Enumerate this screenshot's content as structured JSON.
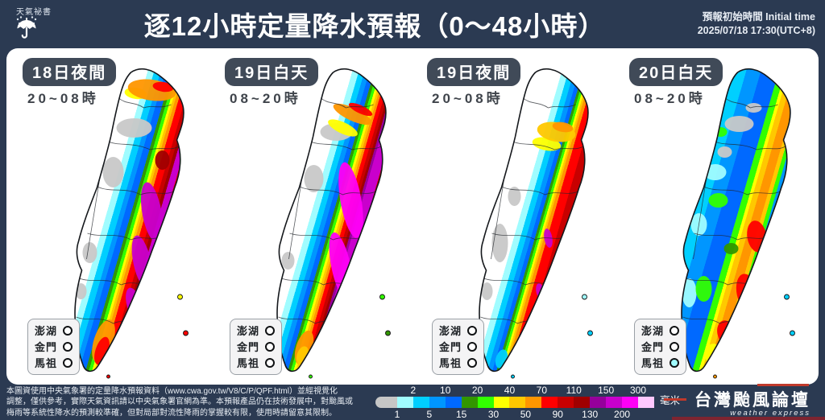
{
  "header": {
    "logo_text": "天氣祕書",
    "title": "逐12小時定量降水預報（0～48小時）",
    "init_time_label": "預報初始時間 Initial time",
    "init_time_value": "2025/07/18  17:30(UTC+8)"
  },
  "island_labels": [
    "澎湖",
    "金門",
    "馬祖"
  ],
  "panels": [
    {
      "badge": "18日夜間",
      "time_range": "20~08時",
      "art": "p1",
      "island_fills": [
        "#ffffff",
        "#ffffff",
        "#ffffff"
      ]
    },
    {
      "badge": "19日白天",
      "time_range": "08~20時",
      "art": "p2",
      "island_fills": [
        "#ffffff",
        "#ffffff",
        "#ffffff"
      ]
    },
    {
      "badge": "19日夜間",
      "time_range": "20~08時",
      "art": "p3",
      "island_fills": [
        "#ffffff",
        "#ffffff",
        "#ffffff"
      ]
    },
    {
      "badge": "20日白天",
      "time_range": "08~20時",
      "art": "p4",
      "island_fills": [
        "#ffffff",
        "#ffffff",
        "#a0fcff"
      ]
    }
  ],
  "footer": {
    "disclaimer_lines": [
      "本圖資使用中央氣象署的定量降水預報資料（www.cwa.gov.tw/V8/C/P/QPF.html）並經視覺化",
      "調整，僅供參考，實際天氣資訊請以中央氣象署官網為準。本預報產品仍在技術發展中，對颱風或",
      "梅雨等系統性降水的預測較準確，但對局部對流性降雨的掌握較有限，使用時請留意其限制。"
    ],
    "scale": {
      "unit": "毫米",
      "segments": [
        {
          "color": "#c6c6c6",
          "label": "1",
          "label_side": "bottom"
        },
        {
          "color": "#a0fcff",
          "label": "2",
          "label_side": "top"
        },
        {
          "color": "#00cfff",
          "label": "5",
          "label_side": "bottom"
        },
        {
          "color": "#0096ff",
          "label": "10",
          "label_side": "top"
        },
        {
          "color": "#0069ff",
          "label": "15",
          "label_side": "bottom"
        },
        {
          "color": "#329600",
          "label": "20",
          "label_side": "top"
        },
        {
          "color": "#32ff00",
          "label": "30",
          "label_side": "bottom"
        },
        {
          "color": "#ffff00",
          "label": "40",
          "label_side": "top"
        },
        {
          "color": "#ffc800",
          "label": "50",
          "label_side": "bottom"
        },
        {
          "color": "#ff9600",
          "label": "70",
          "label_side": "top"
        },
        {
          "color": "#ff0000",
          "label": "90",
          "label_side": "bottom"
        },
        {
          "color": "#c80000",
          "label": "110",
          "label_side": "top"
        },
        {
          "color": "#a00000",
          "label": "130",
          "label_side": "bottom"
        },
        {
          "color": "#96009b",
          "label": "150",
          "label_side": "top"
        },
        {
          "color": "#c900cc",
          "label": "200",
          "label_side": "bottom"
        },
        {
          "color": "#ff00f5",
          "label": "300",
          "label_side": "top"
        },
        {
          "color": "#ffc8ff",
          "label": "",
          "label_side": ""
        }
      ]
    },
    "brand": {
      "name": "台灣颱風論壇",
      "subtitle": "weather express"
    }
  },
  "chart_data": {
    "type": "heatmap",
    "title": "逐12小時定量降水預報（0～48小時）",
    "initial_time": "2025/07/18 17:30(UTC+8)",
    "unit": "毫米",
    "scale_boundaries": [
      1,
      2,
      5,
      10,
      15,
      20,
      30,
      40,
      50,
      70,
      90,
      110,
      130,
      150,
      200,
      300
    ],
    "scale_colors": [
      "#c6c6c6",
      "#a0fcff",
      "#00cfff",
      "#0096ff",
      "#0069ff",
      "#329600",
      "#32ff00",
      "#ffff00",
      "#ffc800",
      "#ff9600",
      "#ff0000",
      "#c80000",
      "#a00000",
      "#96009b",
      "#c900cc",
      "#ff00f5",
      "#ffc8ff"
    ],
    "legend_position": "bottom",
    "panels": [
      {
        "label": "18日夜間",
        "hours": "20~08時",
        "pattern": "西部平原少雨(<10)，中西部5~20，中央山區20~70，東側山脈70~150，花東縱谷與東南山區150~300(紫紅)，東海岸70~130，北端尖端50~90",
        "offshore": {
          "澎湖": "<1",
          "金門": "<1",
          "馬祖": "<1"
        }
      },
      {
        "label": "19日白天",
        "hours": "08~20時",
        "pattern": "西部白~淺藍(<15)，山區快速增強，東側大片200~300以上(亮紫紅帶)，東北部50~90，南端50~70",
        "offshore": {
          "澎湖": "<1",
          "金門": "<1",
          "馬祖": "<1"
        }
      },
      {
        "label": "19日夜間",
        "hours": "20~08時",
        "pattern": "西半部大致無雨~10，中央山區20~70，東部廣域70~130(紅)，局部130~200紫斑，東北部40~70黃橙",
        "offshore": {
          "澎湖": "<1",
          "金門": "<1",
          "馬祖": "<1"
        }
      },
      {
        "label": "20日白天",
        "hours": "08~20時",
        "pattern": "全島以10~20藍色為主，北部局部<1灰白，山區20~40綠，東南部50~110橙紅，南端30~50",
        "offshore": {
          "澎湖": "<1",
          "金門": "<1",
          "馬祖": "1~2"
        }
      }
    ]
  }
}
